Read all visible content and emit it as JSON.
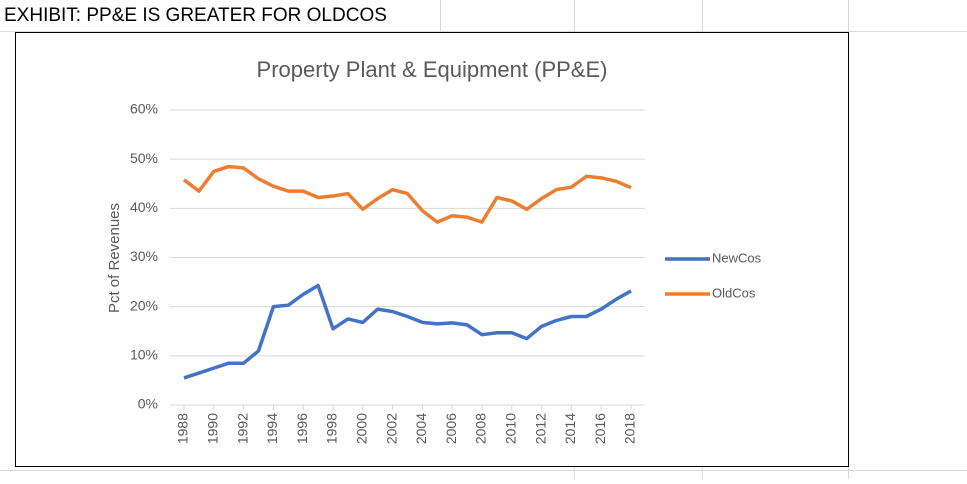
{
  "sheet_title": "EXHIBIT: PP&E IS GREATER FOR OLDCOS",
  "chart_data": {
    "type": "line",
    "title": "Property  Plant & Equipment  (PP&E)",
    "y_label": "Pct of Revenues",
    "x": [
      1988,
      1989,
      1990,
      1991,
      1992,
      1993,
      1994,
      1995,
      1996,
      1997,
      1998,
      1999,
      2000,
      2001,
      2002,
      2003,
      2004,
      2005,
      2006,
      2007,
      2008,
      2009,
      2010,
      2011,
      2012,
      2013,
      2014,
      2015,
      2016,
      2017,
      2018
    ],
    "xlim": [
      1988,
      2018
    ],
    "xticks": [
      1988,
      1990,
      1992,
      1994,
      1996,
      1998,
      2000,
      2002,
      2004,
      2006,
      2008,
      2010,
      2012,
      2014,
      2016,
      2018
    ],
    "ylim": [
      0,
      60
    ],
    "yticks": [
      {
        "value": 0,
        "label": "0%"
      },
      {
        "value": 10,
        "label": "10%"
      },
      {
        "value": 20,
        "label": "20%"
      },
      {
        "value": 30,
        "label": "30%"
      },
      {
        "value": 40,
        "label": "40%"
      },
      {
        "value": 50,
        "label": "50%"
      },
      {
        "value": 60,
        "label": "60%"
      }
    ],
    "grid": true,
    "legend": "right",
    "series": [
      {
        "name": "NewCos",
        "color": "#4472c4",
        "values": [
          5.5,
          6.5,
          7.5,
          8.5,
          8.5,
          11,
          20,
          20.3,
          22.5,
          24.3,
          15.5,
          17.5,
          16.8,
          19.5,
          19,
          18,
          16.8,
          16.5,
          16.7,
          16.3,
          14.3,
          14.7,
          14.7,
          13.5,
          16,
          17.2,
          18,
          18,
          19.5,
          21.5,
          23.2
        ]
      },
      {
        "name": "OldCos",
        "color": "#ed7d31",
        "values": [
          45.8,
          43.5,
          47.5,
          48.5,
          48.2,
          46,
          44.5,
          43.5,
          43.5,
          42.2,
          42.5,
          43,
          39.8,
          42,
          43.8,
          43,
          39.5,
          37.2,
          38.5,
          38.2,
          37.2,
          42.2,
          41.5,
          39.8,
          42,
          43.8,
          44.3,
          46.5,
          46.2,
          45.5,
          44.2
        ]
      }
    ]
  }
}
